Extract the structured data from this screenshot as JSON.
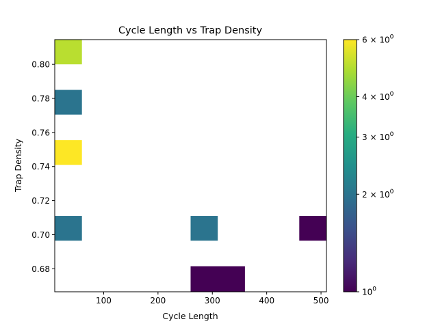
{
  "chart_data": {
    "type": "heatmap",
    "title": "Cycle Length vs Trap Density",
    "xlabel": "Cycle Length",
    "ylabel": "Trap Density",
    "xlim": [
      10,
      510
    ],
    "ylim": [
      0.6665,
      0.8145
    ],
    "x_ticks": [
      100,
      200,
      300,
      400,
      500
    ],
    "y_ticks": [
      0.68,
      0.7,
      0.72,
      0.74,
      0.76,
      0.78,
      0.8
    ],
    "y_tick_labels": [
      "0.68",
      "0.70",
      "0.72",
      "0.74",
      "0.76",
      "0.78",
      "0.80"
    ],
    "colorbar": {
      "scale": "log",
      "range": [
        1,
        6
      ],
      "colormap": "viridis",
      "tick_values": [
        1,
        2,
        3,
        4,
        6
      ],
      "tick_labels": [
        {
          "base": "10",
          "exp": "0",
          "prefix": ""
        },
        {
          "base": "10",
          "exp": "0",
          "prefix": "2 × "
        },
        {
          "base": "10",
          "exp": "0",
          "prefix": "3 × "
        },
        {
          "base": "10",
          "exp": "0",
          "prefix": "4 × "
        },
        {
          "base": "10",
          "exp": "0",
          "prefix": "6 × "
        }
      ]
    },
    "cells": [
      {
        "x0": 10,
        "x1": 60,
        "y0": 0.8,
        "y1": 0.8145,
        "count": 5
      },
      {
        "x0": 10,
        "x1": 60,
        "y0": 0.7705,
        "y1": 0.785,
        "count": 2
      },
      {
        "x0": 10,
        "x1": 60,
        "y0": 0.741,
        "y1": 0.7555,
        "count": 6
      },
      {
        "x0": 10,
        "x1": 60,
        "y0": 0.6965,
        "y1": 0.711,
        "count": 2
      },
      {
        "x0": 260,
        "x1": 310,
        "y0": 0.6965,
        "y1": 0.711,
        "count": 2
      },
      {
        "x0": 460,
        "x1": 510,
        "y0": 0.6965,
        "y1": 0.711,
        "count": 1
      },
      {
        "x0": 260,
        "x1": 360,
        "y0": 0.6665,
        "y1": 0.6815,
        "count": 1
      }
    ]
  }
}
